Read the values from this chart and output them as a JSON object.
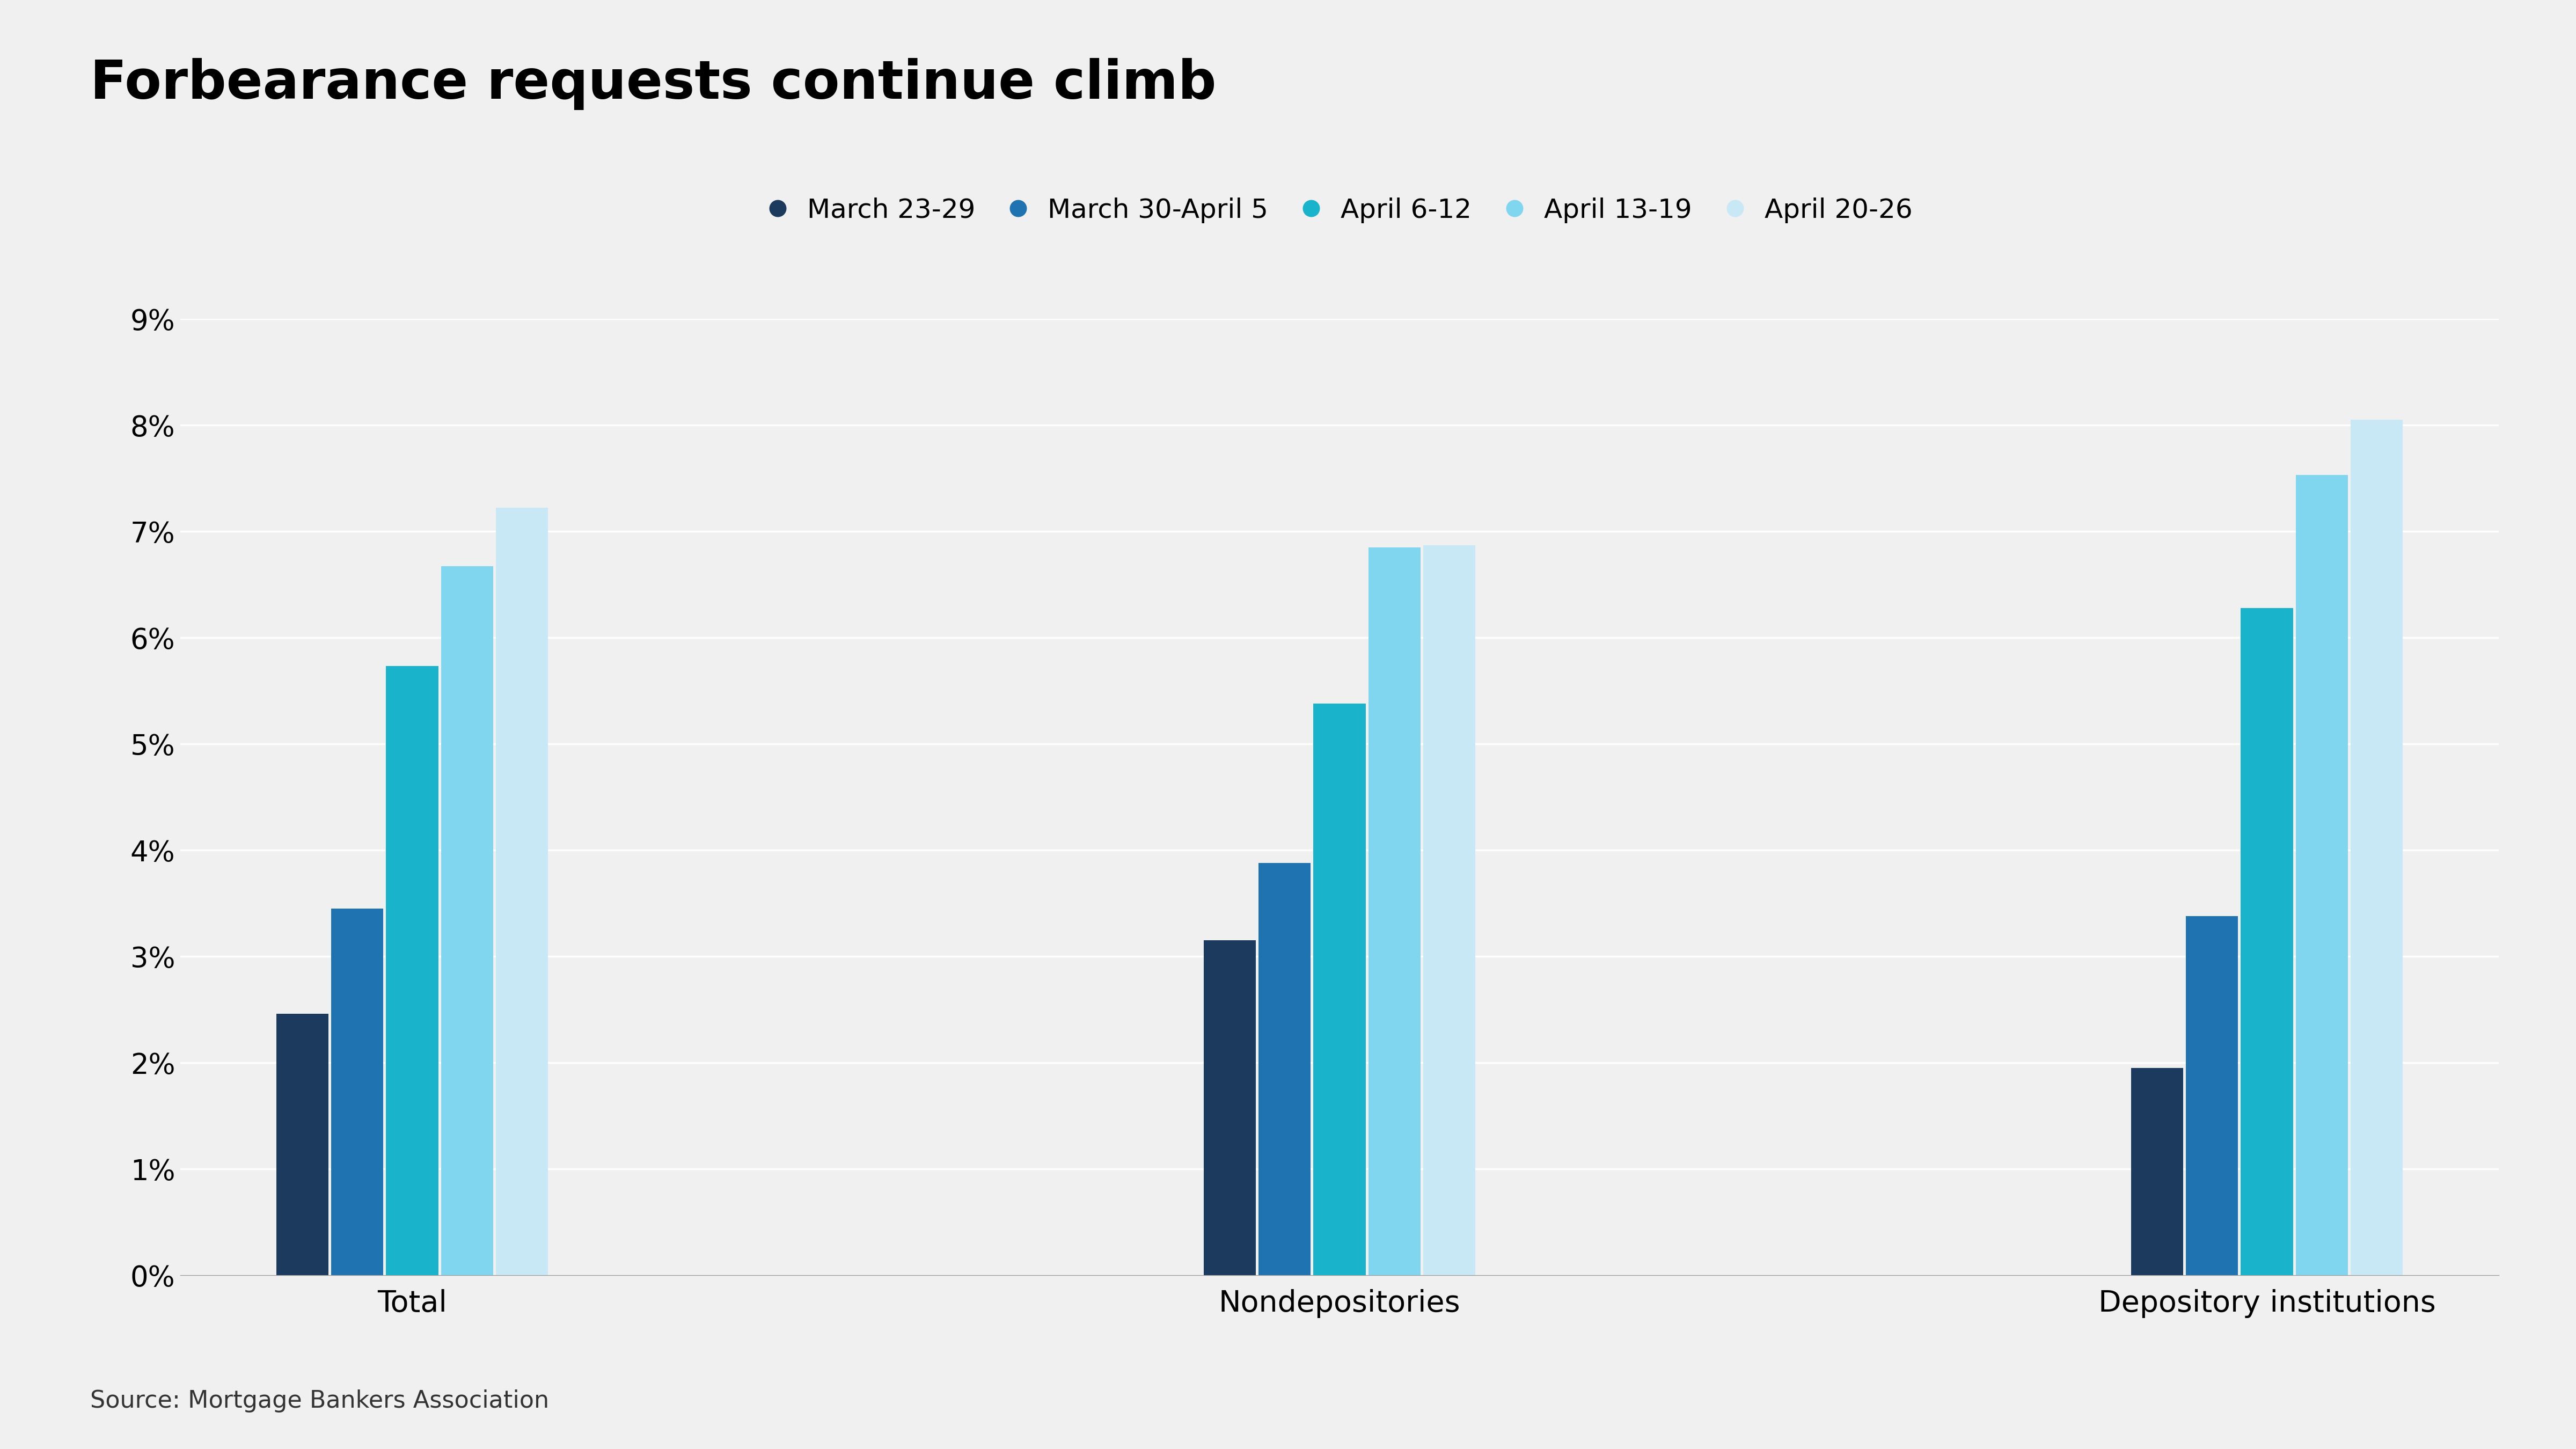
{
  "title": "Forbearance requests continue climb",
  "source": "Source: Mortgage Bankers Association",
  "categories": [
    "Total",
    "Nondepositories",
    "Depository institutions"
  ],
  "series": [
    {
      "label": "March 23-29",
      "color": "#1b3a5e",
      "values": [
        2.46,
        3.15,
        1.95
      ]
    },
    {
      "label": "March 30-April 5",
      "color": "#1e73b0",
      "values": [
        3.45,
        3.88,
        3.38
      ]
    },
    {
      "label": "April 6-12",
      "color": "#1ab3cc",
      "values": [
        5.73,
        5.38,
        6.28
      ]
    },
    {
      "label": "April 13-19",
      "color": "#7fd6ee",
      "values": [
        6.67,
        6.85,
        7.53
      ]
    },
    {
      "label": "April 20-26",
      "color": "#c8e8f6",
      "values": [
        7.22,
        6.87,
        8.05
      ]
    }
  ],
  "ylim": [
    0,
    9
  ],
  "ytick_labels": [
    "0%",
    "1%",
    "2%",
    "3%",
    "4%",
    "5%",
    "6%",
    "7%",
    "8%",
    "9%"
  ],
  "background_color": "#f0f0f0",
  "title_fontsize": 72,
  "legend_fontsize": 36,
  "tick_fontsize": 38,
  "source_fontsize": 32,
  "category_fontsize": 40,
  "bar_width": 0.13,
  "group_positions": [
    1.0,
    3.2,
    5.4
  ]
}
